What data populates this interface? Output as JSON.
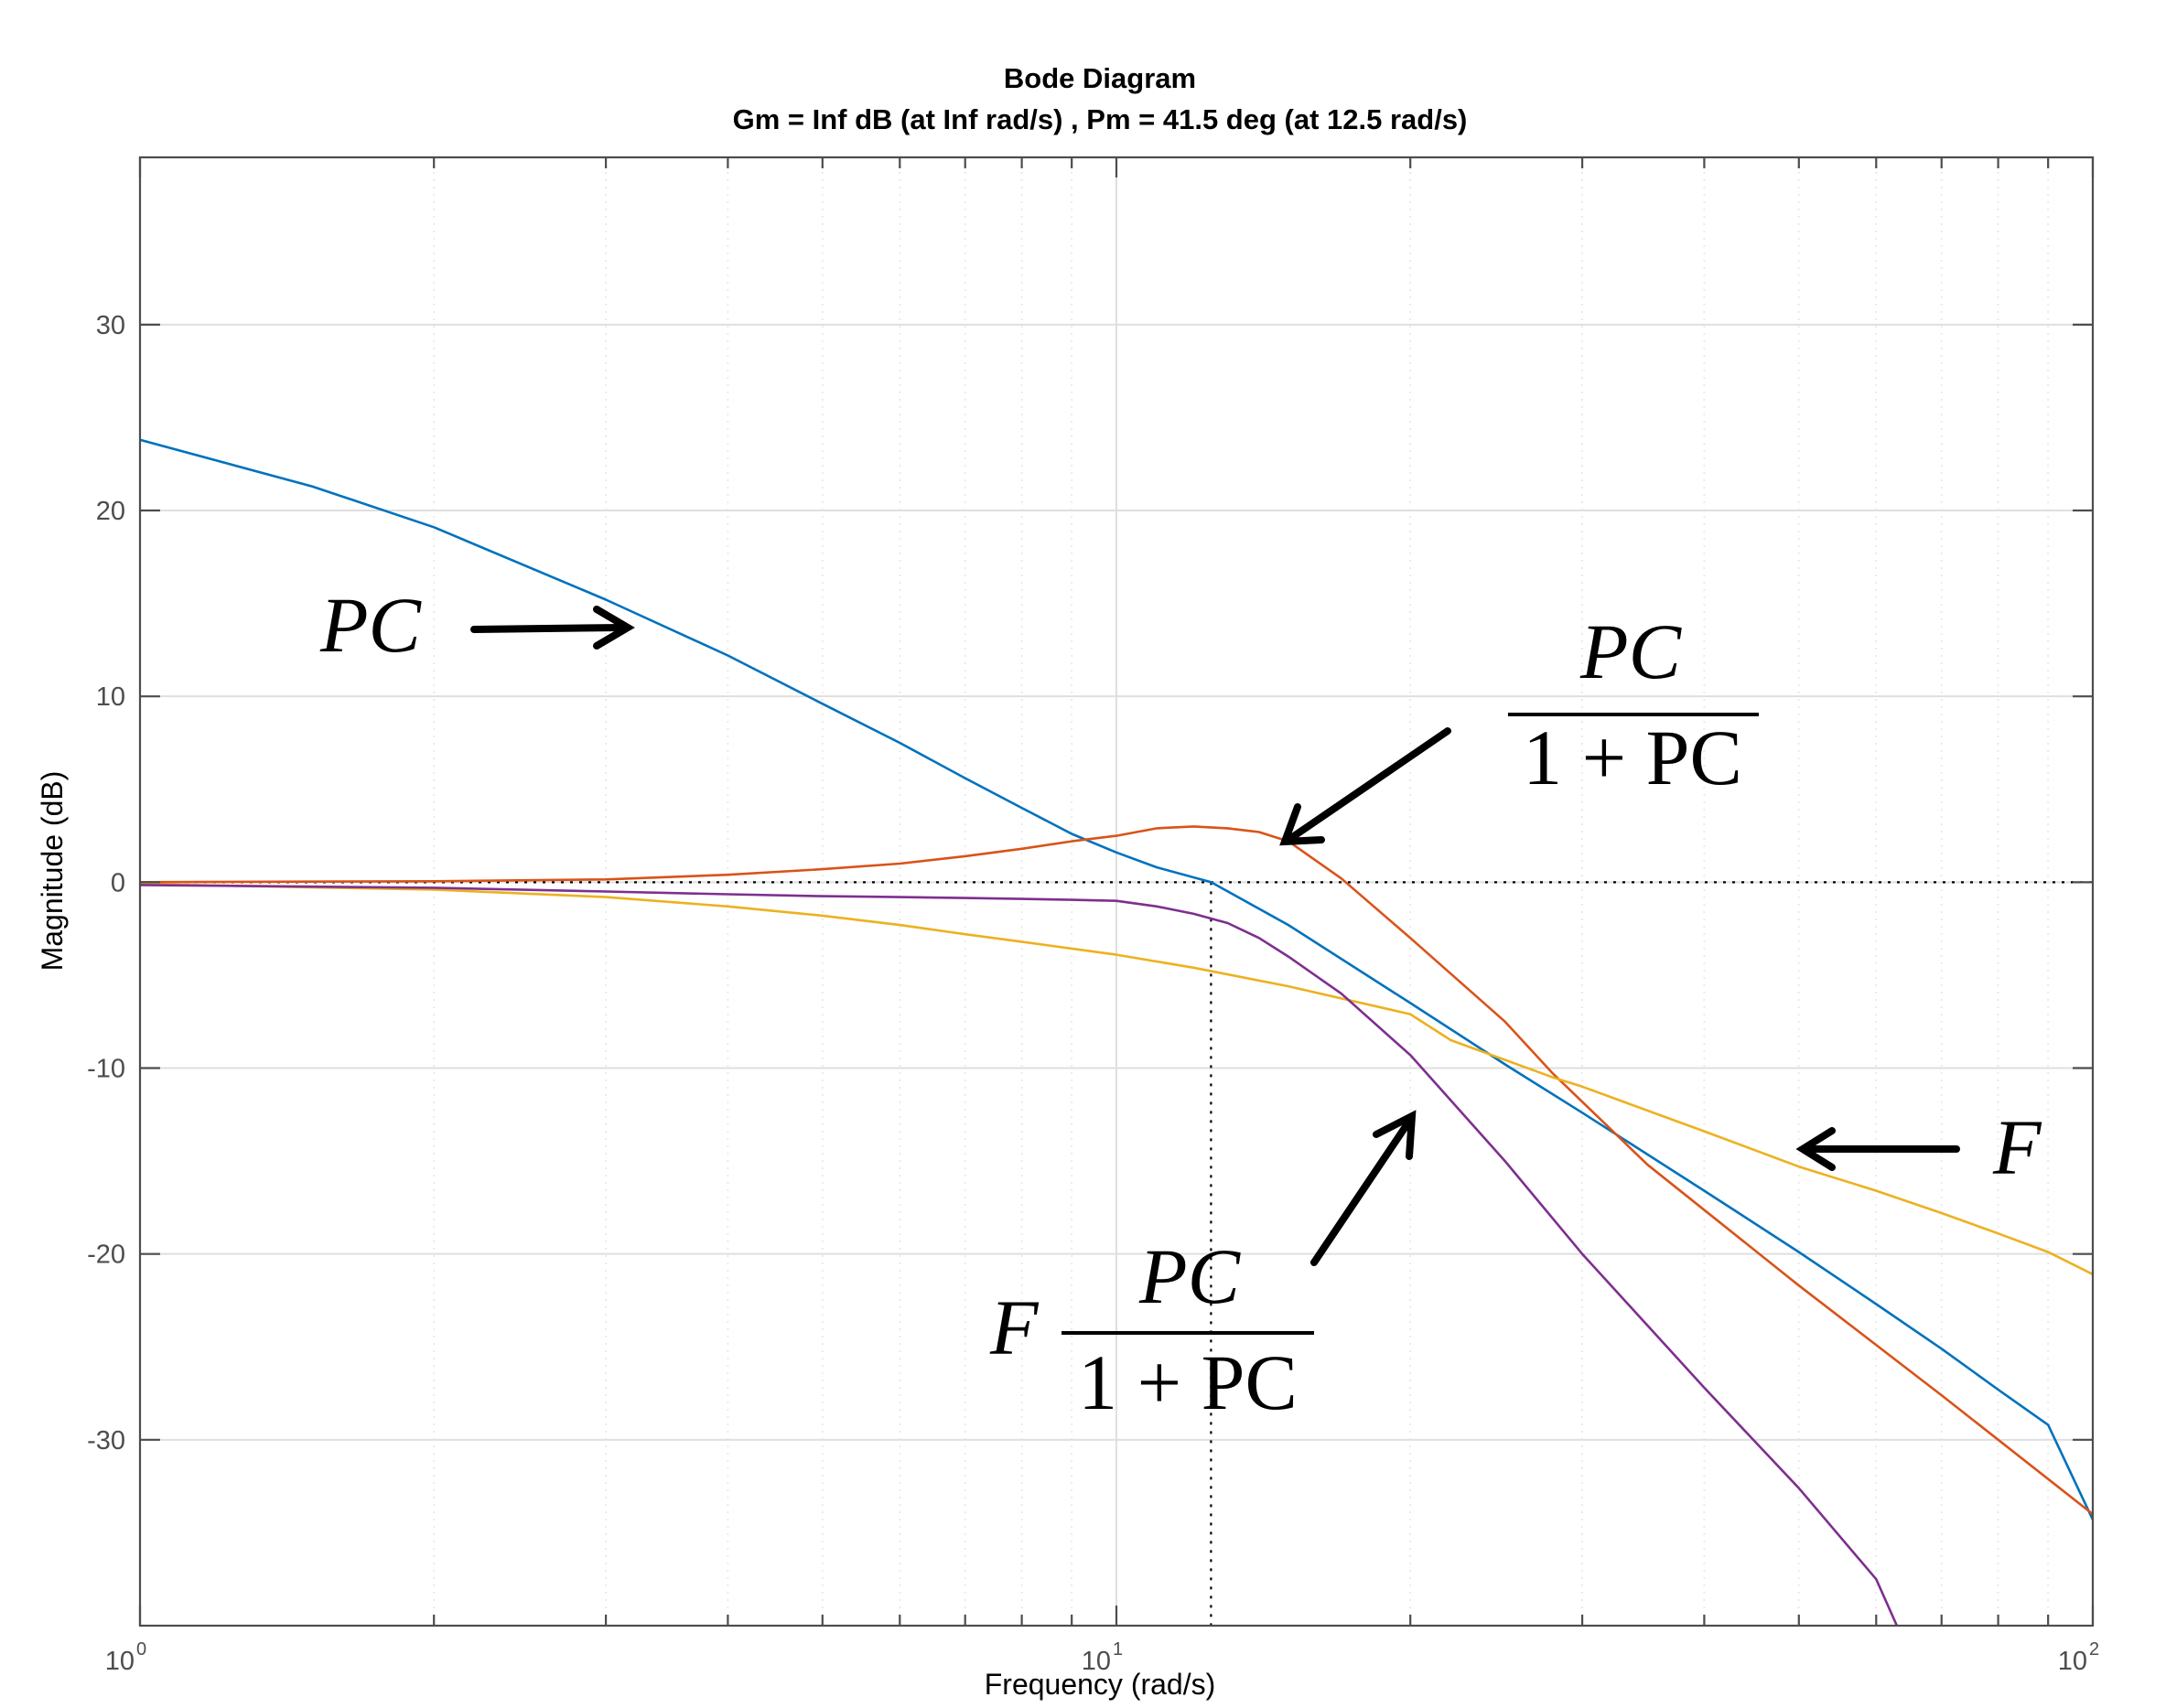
{
  "chart_data": {
    "type": "line",
    "title": "Bode Diagram",
    "subtitle": "Gm = Inf dB (at Inf rad/s) ,  Pm = 41.5 deg (at 12.5 rad/s)",
    "xlabel": "Frequency  (rad/s)",
    "ylabel": "Magnitude (dB)",
    "xscale": "log",
    "xlim": [
      1,
      100
    ],
    "ylim": [
      -40,
      39
    ],
    "grid": true,
    "x_ticks": [
      {
        "base": "10",
        "exp": "0",
        "value": 1
      },
      {
        "base": "10",
        "exp": "1",
        "value": 10
      },
      {
        "base": "10",
        "exp": "2",
        "value": 100
      }
    ],
    "y_ticks": [
      {
        "label": "30",
        "value": 30
      },
      {
        "label": "20",
        "value": 20
      },
      {
        "label": "10",
        "value": 10
      },
      {
        "label": "0",
        "value": 0
      },
      {
        "label": "-10",
        "value": -10
      },
      {
        "label": "-20",
        "value": -20
      },
      {
        "label": "-30",
        "value": -30
      }
    ],
    "reference_lines": {
      "zero_db": 0,
      "crossover_frequency": 12.5
    },
    "series": [
      {
        "color": "#0072BD",
        "points": [
          [
            1,
            23.8
          ],
          [
            1.5,
            21.3
          ],
          [
            2,
            19.1
          ],
          [
            3,
            15.2
          ],
          [
            4,
            12.2
          ],
          [
            5,
            9.6
          ],
          [
            6,
            7.5
          ],
          [
            7,
            5.6
          ],
          [
            8,
            4.0
          ],
          [
            9,
            2.6
          ],
          [
            10,
            1.6
          ],
          [
            11,
            0.8
          ],
          [
            12.5,
            0.0
          ],
          [
            15,
            -2.3
          ],
          [
            20,
            -6.5
          ],
          [
            25,
            -9.8
          ],
          [
            30,
            -12.4
          ],
          [
            40,
            -16.6
          ],
          [
            50,
            -19.9
          ],
          [
            60,
            -22.7
          ],
          [
            70,
            -25.1
          ],
          [
            80,
            -27.3
          ],
          [
            90,
            -29.2
          ],
          [
            100,
            -34.3
          ]
        ]
      },
      {
        "color": "#D95319",
        "points": [
          [
            1,
            0.0
          ],
          [
            2,
            0.05
          ],
          [
            3,
            0.15
          ],
          [
            4,
            0.4
          ],
          [
            5,
            0.7
          ],
          [
            6,
            1.0
          ],
          [
            7,
            1.4
          ],
          [
            8,
            1.8
          ],
          [
            9,
            2.2
          ],
          [
            10,
            2.5
          ],
          [
            11,
            2.9
          ],
          [
            12,
            3.0
          ],
          [
            13,
            2.9
          ],
          [
            14,
            2.7
          ],
          [
            15,
            2.2
          ],
          [
            17,
            0.2
          ],
          [
            20,
            -3.0
          ],
          [
            25,
            -7.5
          ],
          [
            28,
            -10.3
          ],
          [
            35,
            -15.2
          ],
          [
            50,
            -21.7
          ],
          [
            70,
            -27.6
          ],
          [
            100,
            -34.0
          ]
        ]
      },
      {
        "color": "#EDB120",
        "points": [
          [
            1,
            -0.1
          ],
          [
            2,
            -0.4
          ],
          [
            3,
            -0.8
          ],
          [
            4,
            -1.3
          ],
          [
            5,
            -1.8
          ],
          [
            6,
            -2.3
          ],
          [
            7,
            -2.8
          ],
          [
            8,
            -3.2
          ],
          [
            10,
            -3.9
          ],
          [
            12,
            -4.6
          ],
          [
            15,
            -5.6
          ],
          [
            20,
            -7.1
          ],
          [
            22,
            -8.5
          ],
          [
            28,
            -10.5
          ],
          [
            30,
            -11.0
          ],
          [
            40,
            -13.4
          ],
          [
            50,
            -15.3
          ],
          [
            60,
            -16.6
          ],
          [
            70,
            -17.8
          ],
          [
            80,
            -18.9
          ],
          [
            90,
            -19.9
          ],
          [
            100,
            -21.1
          ]
        ]
      },
      {
        "color": "#7E2F8E",
        "points": [
          [
            1,
            -0.15
          ],
          [
            2,
            -0.3
          ],
          [
            3,
            -0.5
          ],
          [
            4,
            -0.65
          ],
          [
            5,
            -0.75
          ],
          [
            6,
            -0.8
          ],
          [
            7,
            -0.85
          ],
          [
            8,
            -0.9
          ],
          [
            9,
            -0.95
          ],
          [
            10,
            -1.0
          ],
          [
            11,
            -1.3
          ],
          [
            12,
            -1.7
          ],
          [
            13,
            -2.2
          ],
          [
            14,
            -3.0
          ],
          [
            15,
            -4.0
          ],
          [
            17,
            -6.0
          ],
          [
            20,
            -9.3
          ],
          [
            25,
            -15.0
          ],
          [
            30,
            -20.0
          ],
          [
            40,
            -27.2
          ],
          [
            50,
            -32.6
          ],
          [
            60,
            -37.5
          ],
          [
            63,
            -40
          ]
        ]
      }
    ],
    "annotations": [
      {
        "kind": "plain",
        "text": "PC"
      },
      {
        "kind": "fraction",
        "numerator": "PC",
        "denominator": "1 + PC"
      },
      {
        "kind": "plain",
        "text": "F"
      },
      {
        "kind": "prefixed-fraction",
        "prefix": "F",
        "numerator": "PC",
        "denominator": "1 + PC"
      }
    ]
  },
  "colors": {
    "axis": "#4d4d4d",
    "grid": "#dfdfdf",
    "minor_grid": "#ebebeb",
    "arrow": "#000000"
  }
}
